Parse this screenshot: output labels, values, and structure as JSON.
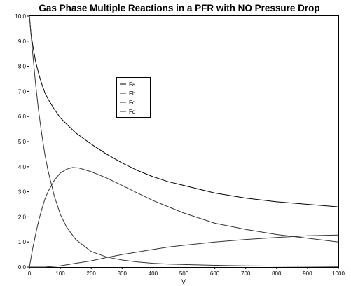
{
  "chart_data": {
    "type": "line",
    "title": "Gas Phase Multiple Reactions in a PFR with NO Pressure Drop",
    "xlabel": "V",
    "ylabel": "",
    "xlim": [
      0,
      1000
    ],
    "ylim": [
      0,
      10
    ],
    "xticks": [
      0,
      100,
      200,
      300,
      400,
      500,
      600,
      700,
      800,
      900,
      1000
    ],
    "yticks": [
      0,
      1,
      2,
      3,
      4,
      5,
      6,
      7,
      8,
      9,
      10
    ],
    "ytick_labels": [
      "0.0",
      "1.0",
      "2.0",
      "3.0",
      "4.0",
      "5.0",
      "6.0",
      "7.0",
      "8.0",
      "9.0",
      "10.0"
    ],
    "grid": false,
    "legend_position": "upper-left-center",
    "series": [
      {
        "name": "Fa",
        "color": "#000000",
        "x": [
          0,
          5,
          10,
          20,
          30,
          40,
          50,
          60,
          80,
          100,
          120,
          150,
          200,
          250,
          300,
          350,
          400,
          450,
          500,
          600,
          700,
          800,
          900,
          1000
        ],
        "y": [
          10.0,
          9.3,
          8.9,
          8.2,
          7.7,
          7.3,
          6.95,
          6.7,
          6.3,
          5.95,
          5.7,
          5.35,
          4.9,
          4.5,
          4.15,
          3.85,
          3.6,
          3.4,
          3.25,
          2.95,
          2.75,
          2.6,
          2.5,
          2.4
        ]
      },
      {
        "name": "Fb",
        "color": "#333333",
        "x": [
          0,
          5,
          10,
          20,
          30,
          40,
          50,
          60,
          80,
          100,
          120,
          150,
          200,
          250,
          300,
          350,
          400,
          450,
          500,
          600,
          700,
          800,
          900,
          1000
        ],
        "y": [
          10.0,
          9.3,
          8.6,
          7.3,
          6.2,
          5.3,
          4.5,
          3.85,
          2.85,
          2.1,
          1.6,
          1.1,
          0.62,
          0.4,
          0.28,
          0.2,
          0.15,
          0.12,
          0.1,
          0.07,
          0.05,
          0.04,
          0.03,
          0.02
        ]
      },
      {
        "name": "Fc",
        "color": "#333333",
        "x": [
          0,
          10,
          20,
          30,
          40,
          50,
          60,
          80,
          100,
          120,
          140,
          160,
          200,
          250,
          300,
          350,
          400,
          450,
          500,
          600,
          700,
          800,
          900,
          1000
        ],
        "y": [
          0.0,
          0.7,
          1.3,
          1.85,
          2.3,
          2.7,
          3.0,
          3.45,
          3.75,
          3.9,
          3.97,
          3.95,
          3.8,
          3.55,
          3.25,
          2.95,
          2.65,
          2.4,
          2.15,
          1.75,
          1.5,
          1.3,
          1.15,
          1.0
        ]
      },
      {
        "name": "Fd",
        "color": "#333333",
        "x": [
          0,
          50,
          100,
          150,
          200,
          250,
          300,
          350,
          400,
          450,
          500,
          600,
          700,
          800,
          900,
          1000
        ],
        "y": [
          0.0,
          0.0,
          0.05,
          0.15,
          0.25,
          0.38,
          0.5,
          0.6,
          0.7,
          0.8,
          0.87,
          1.0,
          1.1,
          1.18,
          1.25,
          1.28
        ]
      }
    ]
  }
}
